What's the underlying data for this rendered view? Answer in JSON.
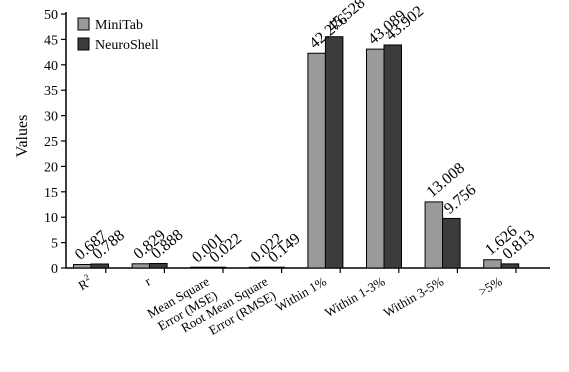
{
  "chart_data": {
    "type": "bar",
    "title": "",
    "xlabel": "",
    "ylabel": "Values",
    "ylim": [
      0,
      50
    ],
    "yticks": [
      0,
      5,
      10,
      15,
      20,
      25,
      30,
      35,
      40,
      45,
      50
    ],
    "grid": false,
    "legend_position": "top-left",
    "categories": [
      "R2",
      "r",
      "Mean Square Error (MSE)",
      "Root Mean Square Error (RMSE)",
      "Within 1%",
      "Within 1-3%",
      "Within 3-5%",
      ">5%"
    ],
    "category_lines": [
      [
        "R2"
      ],
      [
        "r"
      ],
      [
        "Mean Square",
        "Error (MSE)"
      ],
      [
        "Root Mean Square",
        "Error (RMSE)"
      ],
      [
        "Within 1%"
      ],
      [
        "Within 1-3%"
      ],
      [
        "Within 3-5%"
      ],
      [
        ">5%"
      ]
    ],
    "series": [
      {
        "name": "MiniTab",
        "color": "#9a9a9a",
        "values": [
          0.687,
          0.829,
          0.001,
          0.022,
          42.276,
          43.089,
          13.008,
          1.626
        ],
        "labels": [
          "0.687",
          "0.829",
          "0.001",
          "0.022",
          "42.276",
          "43.089",
          "13.008",
          "1.626"
        ]
      },
      {
        "name": "NeuroShell",
        "color": "#3c3c3c",
        "values": [
          0.788,
          0.888,
          0.022,
          0.149,
          45.528,
          43.902,
          9.756,
          0.813
        ],
        "labels": [
          "0.788",
          "0.888",
          "0.022",
          "0.149",
          "45.528",
          "43.902",
          "9.756",
          "0.813"
        ]
      }
    ]
  }
}
